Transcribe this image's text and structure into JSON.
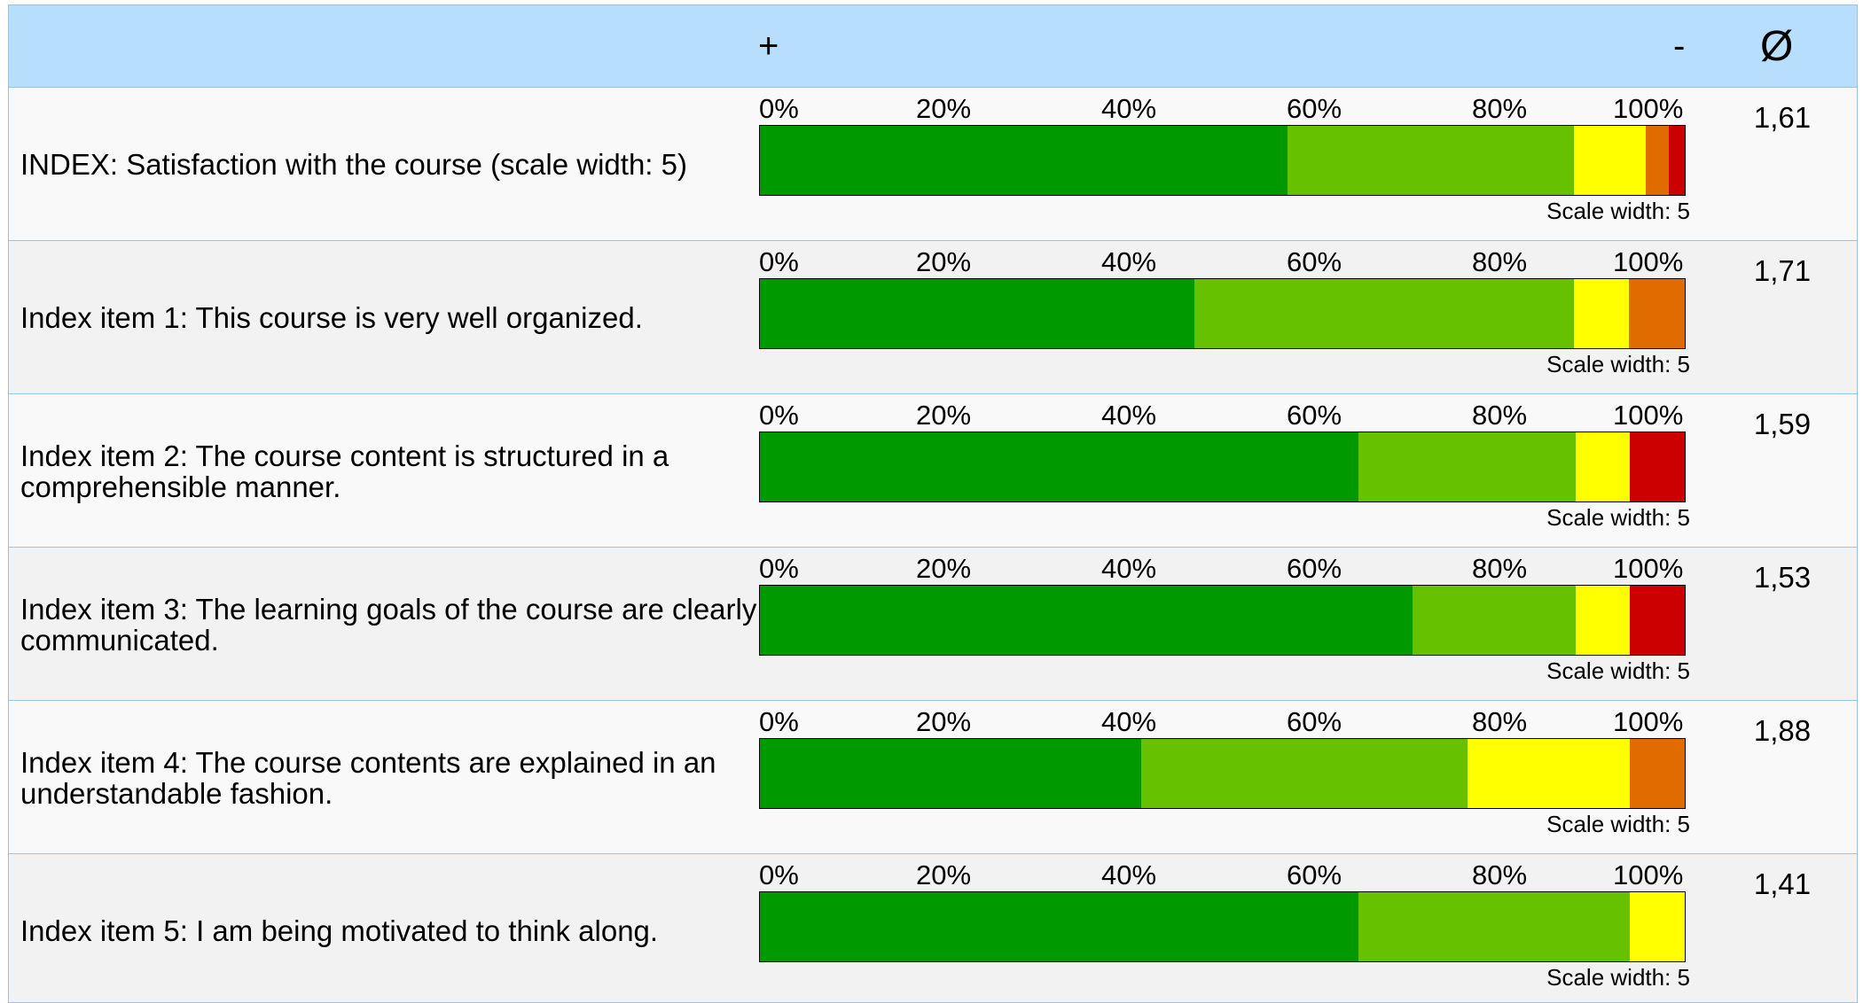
{
  "header": {
    "plus": "+",
    "minus": "-",
    "average": "Ø"
  },
  "ticks": [
    "0%",
    "20%",
    "40%",
    "60%",
    "80%",
    "100%"
  ],
  "colors": [
    "#009900",
    "#66c200",
    "#ffff00",
    "#e06c00",
    "#cc0000"
  ],
  "chart_data": {
    "type": "bar",
    "stacked": true,
    "orientation": "horizontal",
    "xlim": [
      0,
      100
    ],
    "unit": "%",
    "rows": [
      {
        "label": "INDEX: Satisfaction with the course (scale width: 5)",
        "segments": [
          57,
          31,
          7.8,
          2.5,
          1.7
        ],
        "scale_note": "Scale width: 5",
        "mean": "1,61"
      },
      {
        "label": "Index item 1: This course is very well organized.",
        "segments": [
          47,
          41,
          6,
          6,
          0
        ],
        "scale_note": "Scale width: 5",
        "mean": "1,71"
      },
      {
        "label": "Index item 2: The course content is structured in a comprehensible manner.",
        "segments": [
          64.7,
          23.5,
          5.9,
          0,
          5.9
        ],
        "scale_note": "Scale width: 5",
        "mean": "1,59"
      },
      {
        "label": "Index item 3: The learning goals of the course are clearly communicated.",
        "segments": [
          70.6,
          17.6,
          5.9,
          0,
          5.9
        ],
        "scale_note": "Scale width: 5",
        "mean": "1,53"
      },
      {
        "label": "Index item 4: The course contents are explained in an understandable fashion.",
        "segments": [
          41.2,
          35.3,
          17.6,
          5.9,
          0
        ],
        "scale_note": "Scale width: 5",
        "mean": "1,88"
      },
      {
        "label": "Index item 5: I am being motivated to think along.",
        "segments": [
          64.7,
          29.4,
          5.9,
          0,
          0
        ],
        "scale_note": "Scale width: 5",
        "mean": "1,41"
      }
    ]
  }
}
